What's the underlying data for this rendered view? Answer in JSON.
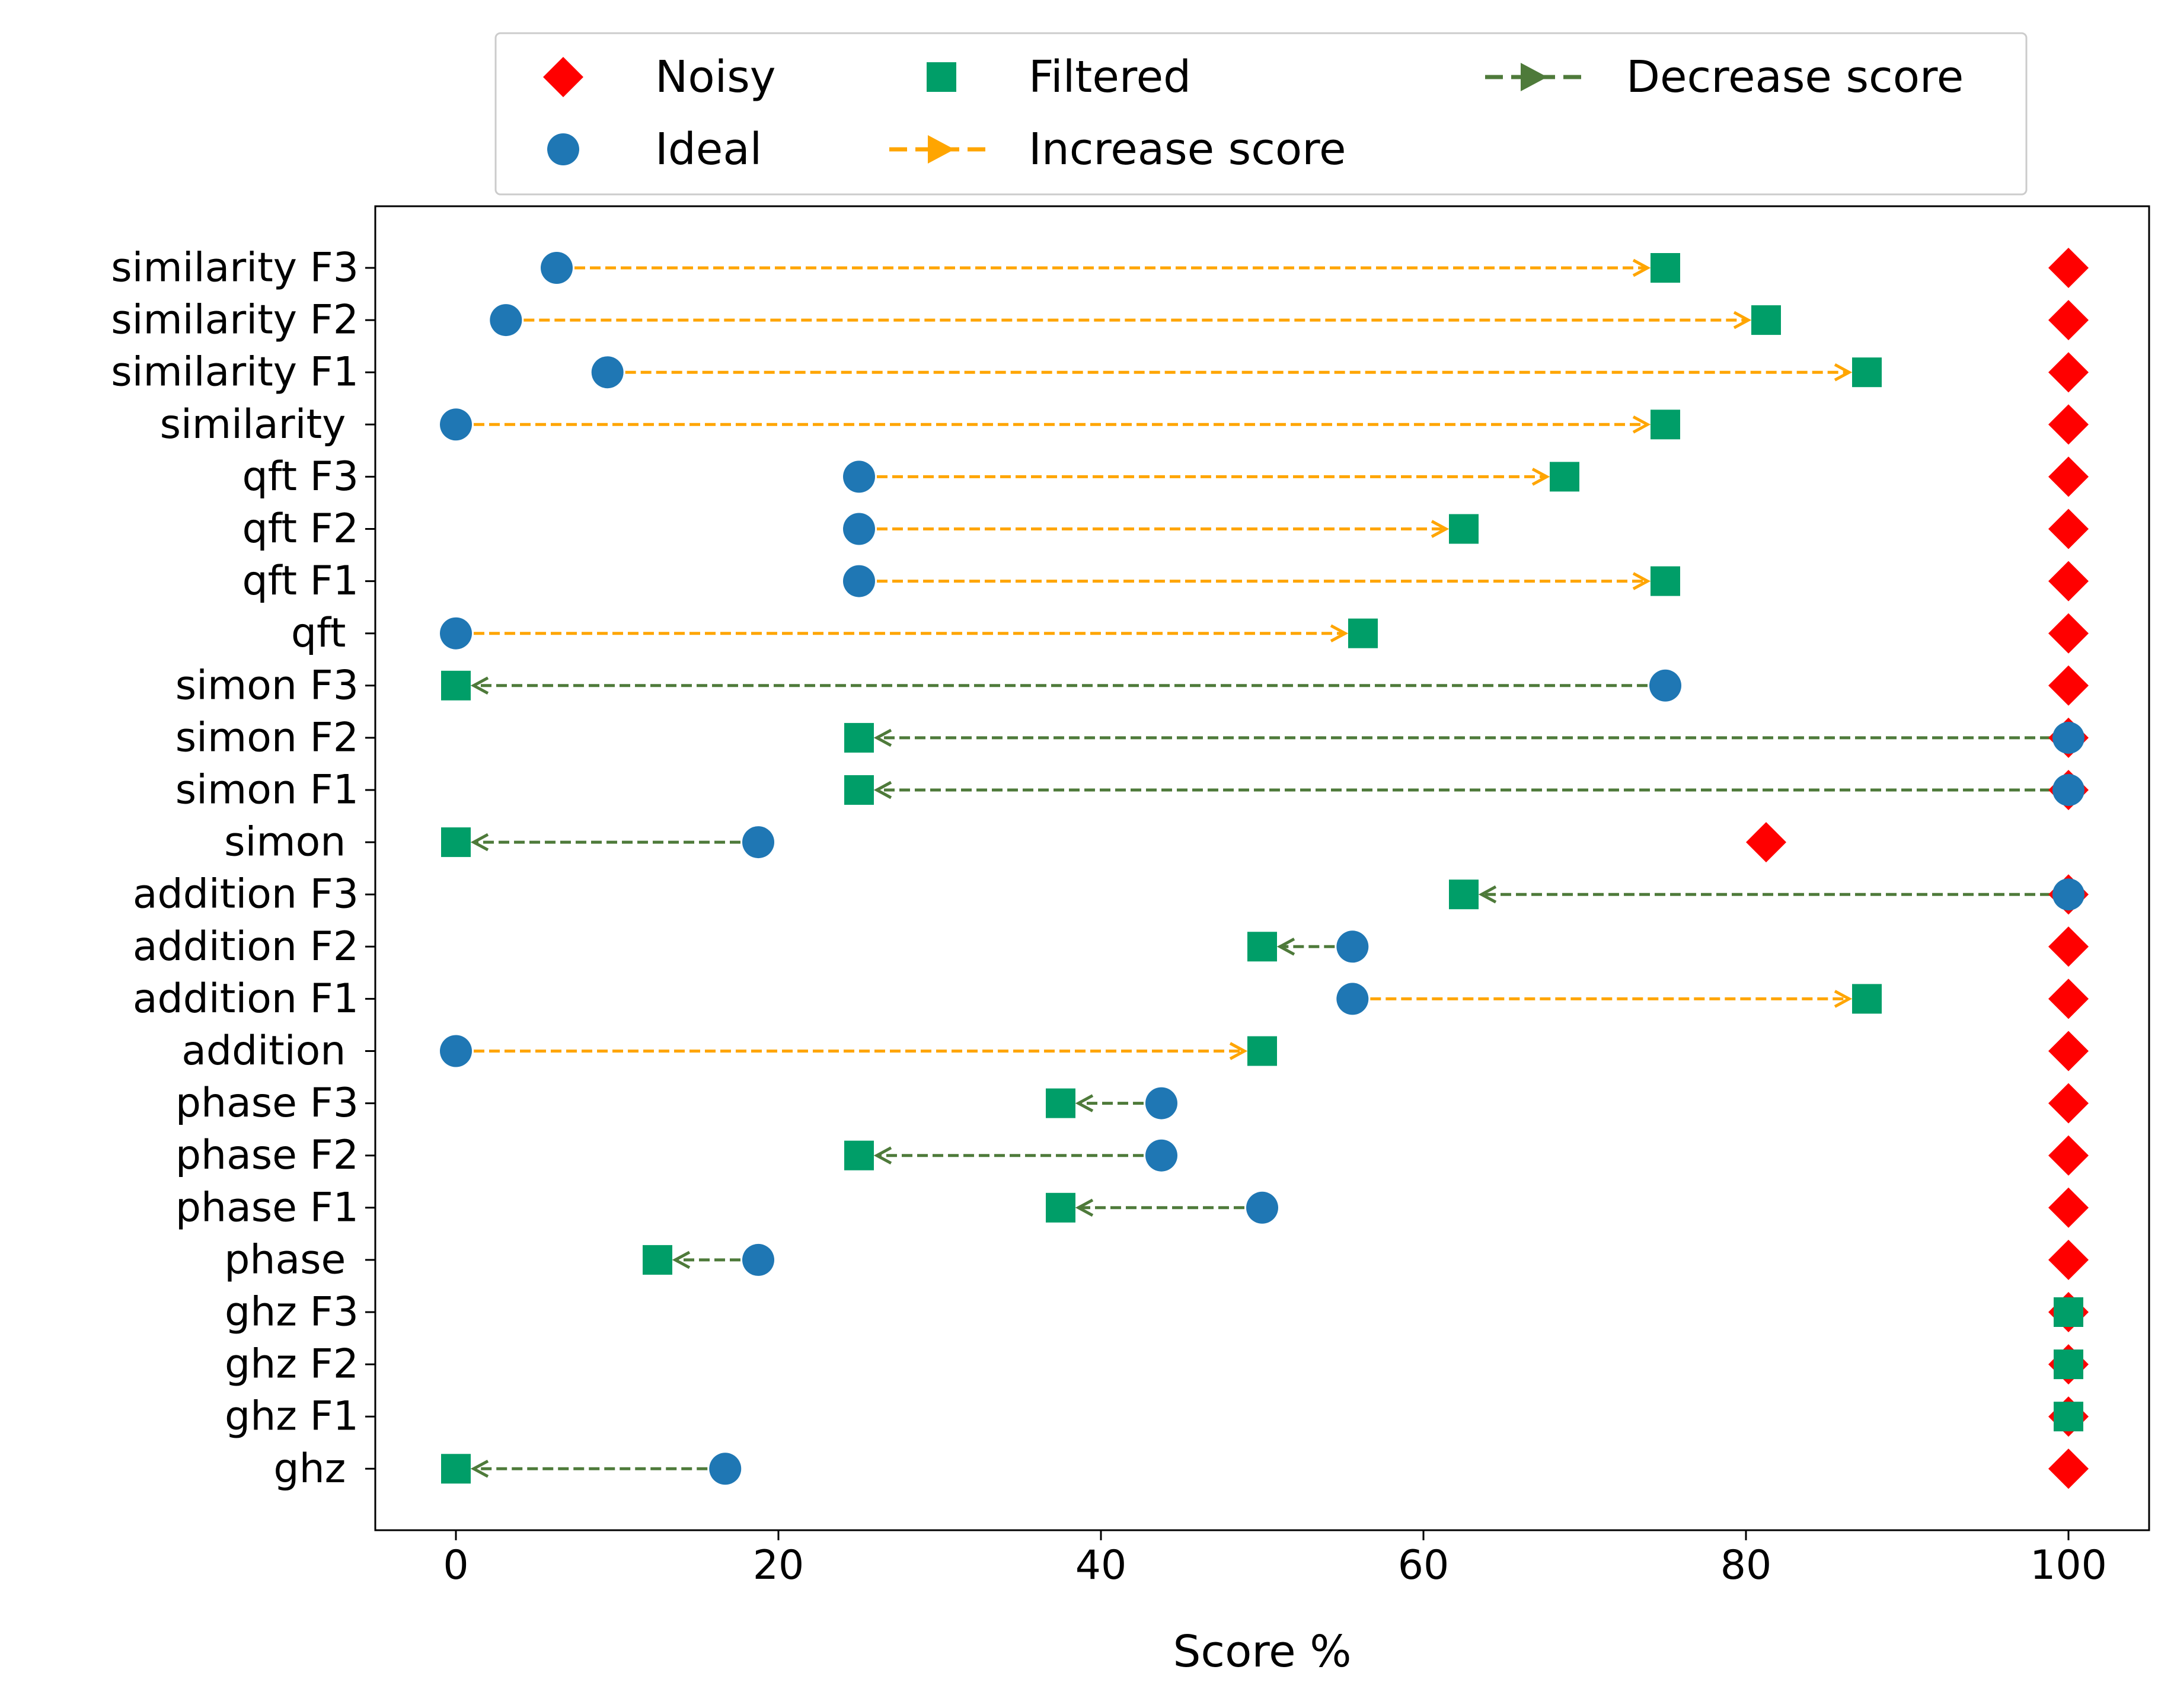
{
  "chart_data": {
    "type": "scatter",
    "title": "",
    "xlabel": "Score %",
    "ylabel": "",
    "xlim": [
      -5,
      105
    ],
    "xticks": [
      0,
      20,
      40,
      60,
      80,
      100
    ],
    "legend_position": "top-center, above plot",
    "legend": [
      {
        "key": "noisy",
        "label": "Noisy",
        "marker": "diamond"
      },
      {
        "key": "ideal",
        "label": "Ideal",
        "marker": "circle"
      },
      {
        "key": "filtered",
        "label": "Filtered",
        "marker": "square"
      },
      {
        "key": "increase",
        "label": "Increase score",
        "marker": "dashed-arrow"
      },
      {
        "key": "decrease",
        "label": "Decrease score",
        "marker": "dashed-arrow"
      }
    ],
    "colors": {
      "noisy": "#ff0000",
      "ideal": "#1f77b4",
      "filtered": "#009e68",
      "increase": "#ffa500",
      "decrease": "#4e7a3a"
    },
    "categories": [
      "similarity F3",
      "similarity F2",
      "similarity F1",
      "similarity ",
      "qft F3",
      "qft F2",
      "qft F1",
      "qft ",
      "simon F3",
      "simon F2",
      "simon F1",
      "simon ",
      "addition F3",
      "addition F2",
      "addition F1",
      "addition ",
      "phase F3",
      "phase F2",
      "phase F1",
      "phase ",
      "ghz F3",
      "ghz F2",
      "ghz F1",
      "ghz "
    ],
    "series": [
      {
        "name": "Noisy",
        "values": [
          100,
          100,
          100,
          100,
          100,
          100,
          100,
          100,
          100,
          100,
          100,
          81.25,
          100,
          100,
          100,
          100,
          100,
          100,
          100,
          100,
          100,
          100,
          100,
          100
        ]
      },
      {
        "name": "Ideal",
        "values": [
          6.25,
          3.1,
          9.4,
          0,
          25,
          25,
          25,
          0,
          75,
          100,
          100,
          18.75,
          100,
          55.6,
          55.6,
          0,
          43.75,
          43.75,
          50,
          18.75,
          null,
          null,
          null,
          16.7
        ]
      },
      {
        "name": "Filtered",
        "values": [
          75,
          81.25,
          87.5,
          75,
          68.75,
          62.5,
          75,
          56.25,
          0,
          25,
          25,
          0,
          62.5,
          50,
          87.5,
          50,
          37.5,
          25,
          37.5,
          12.5,
          100,
          100,
          100,
          0
        ]
      }
    ]
  }
}
